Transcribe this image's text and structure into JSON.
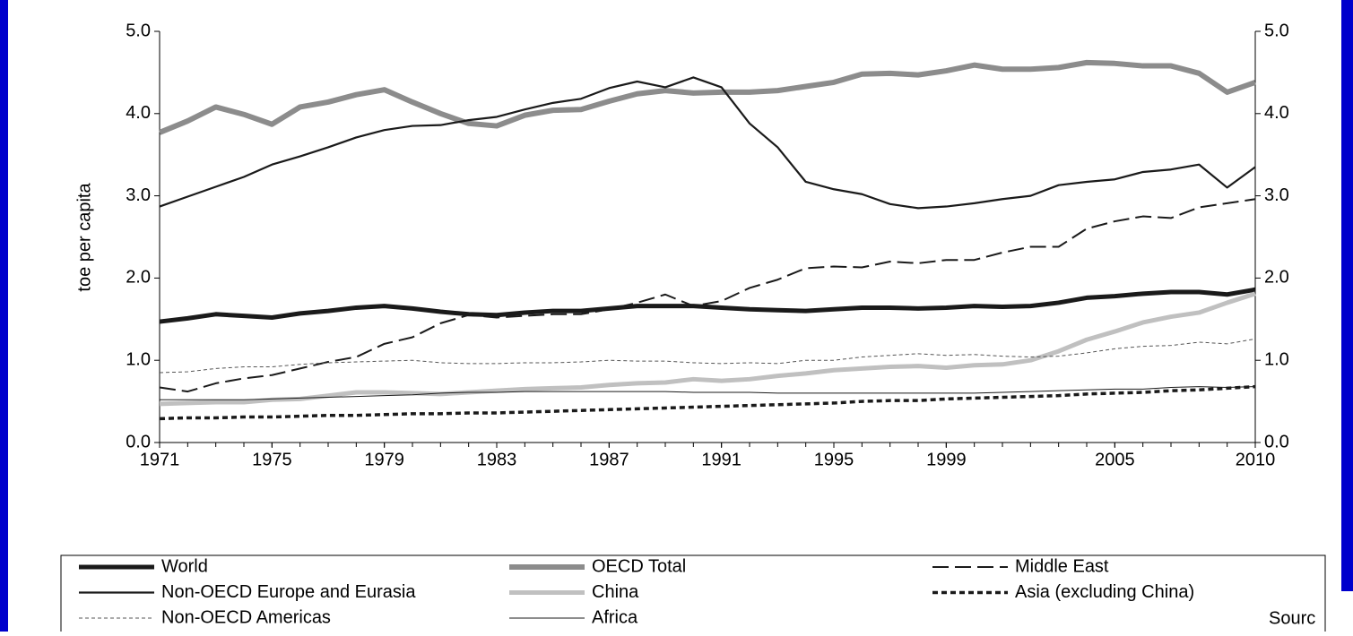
{
  "chart_data": {
    "type": "line",
    "y_label": "toe per capita",
    "source": "Sourc",
    "x": [
      1971,
      1972,
      1973,
      1974,
      1975,
      1976,
      1977,
      1978,
      1979,
      1980,
      1981,
      1982,
      1983,
      1984,
      1985,
      1986,
      1987,
      1988,
      1989,
      1990,
      1991,
      1992,
      1993,
      1994,
      1995,
      1996,
      1997,
      1998,
      1999,
      2000,
      2001,
      2002,
      2003,
      2004,
      2005,
      2006,
      2007,
      2008,
      2009,
      2010
    ],
    "xlim": [
      1971,
      2010
    ],
    "xticks": [
      1971,
      1975,
      1979,
      1983,
      1987,
      1991,
      1995,
      1999,
      2005,
      2010
    ],
    "ylim": [
      0,
      5
    ],
    "yticks": [
      {
        "value": 0,
        "label": "0.0"
      },
      {
        "value": 1,
        "label": "1.0"
      },
      {
        "value": 2,
        "label": "2.0"
      },
      {
        "value": 3,
        "label": "3.0"
      },
      {
        "value": 4,
        "label": "4.0"
      },
      {
        "value": 5,
        "label": "5.0"
      }
    ],
    "series": [
      {
        "name": "World",
        "color": "#1a1a1a",
        "values": [
          1.47,
          1.51,
          1.56,
          1.54,
          1.52,
          1.57,
          1.6,
          1.64,
          1.66,
          1.63,
          1.59,
          1.56,
          1.55,
          1.58,
          1.6,
          1.6,
          1.63,
          1.66,
          1.66,
          1.66,
          1.64,
          1.62,
          1.61,
          1.6,
          1.62,
          1.64,
          1.64,
          1.63,
          1.64,
          1.66,
          1.65,
          1.66,
          1.7,
          1.76,
          1.78,
          1.81,
          1.83,
          1.83,
          1.8,
          1.86
        ]
      },
      {
        "name": "OECD Total",
        "color": "#8c8c8c",
        "values": [
          3.77,
          3.91,
          4.08,
          3.99,
          3.87,
          4.08,
          4.14,
          4.23,
          4.29,
          4.14,
          4.0,
          3.88,
          3.85,
          3.98,
          4.04,
          4.05,
          4.15,
          4.24,
          4.28,
          4.25,
          4.26,
          4.26,
          4.28,
          4.33,
          4.38,
          4.48,
          4.49,
          4.47,
          4.52,
          4.59,
          4.54,
          4.54,
          4.56,
          4.62,
          4.61,
          4.58,
          4.58,
          4.49,
          4.26,
          4.38
        ]
      },
      {
        "name": "Middle East",
        "color": "#1a1a1a",
        "values": [
          0.67,
          0.62,
          0.72,
          0.78,
          0.82,
          0.9,
          0.98,
          1.04,
          1.2,
          1.28,
          1.45,
          1.55,
          1.52,
          1.54,
          1.56,
          1.56,
          1.62,
          1.7,
          1.8,
          1.66,
          1.72,
          1.88,
          1.98,
          2.12,
          2.14,
          2.13,
          2.2,
          2.18,
          2.22,
          2.22,
          2.31,
          2.38,
          2.38,
          2.6,
          2.69,
          2.75,
          2.73,
          2.86,
          2.91,
          2.96
        ]
      },
      {
        "name": "Non-OECD Europe and Eurasia",
        "color": "#1a1a1a",
        "values": [
          2.87,
          2.99,
          3.11,
          3.23,
          3.38,
          3.48,
          3.59,
          3.71,
          3.8,
          3.85,
          3.86,
          3.92,
          3.96,
          4.05,
          4.13,
          4.18,
          4.31,
          4.39,
          4.32,
          4.44,
          4.32,
          3.88,
          3.59,
          3.17,
          3.08,
          3.02,
          2.9,
          2.85,
          2.87,
          2.91,
          2.96,
          3.0,
          3.13,
          3.17,
          3.2,
          3.29,
          3.32,
          3.38,
          3.1,
          3.35
        ]
      },
      {
        "name": "China",
        "color": "#c0c0c0",
        "values": [
          0.47,
          0.48,
          0.49,
          0.49,
          0.52,
          0.53,
          0.57,
          0.61,
          0.61,
          0.6,
          0.59,
          0.61,
          0.63,
          0.65,
          0.66,
          0.67,
          0.7,
          0.72,
          0.73,
          0.77,
          0.75,
          0.77,
          0.81,
          0.84,
          0.88,
          0.9,
          0.92,
          0.93,
          0.91,
          0.94,
          0.95,
          1.0,
          1.11,
          1.25,
          1.35,
          1.46,
          1.53,
          1.58,
          1.7,
          1.81
        ]
      },
      {
        "name": "Asia (excluding China)",
        "color": "#1a1a1a",
        "values": [
          0.29,
          0.3,
          0.3,
          0.31,
          0.31,
          0.32,
          0.33,
          0.33,
          0.34,
          0.35,
          0.35,
          0.36,
          0.36,
          0.37,
          0.38,
          0.39,
          0.4,
          0.41,
          0.42,
          0.43,
          0.44,
          0.45,
          0.46,
          0.47,
          0.48,
          0.5,
          0.51,
          0.51,
          0.53,
          0.54,
          0.55,
          0.56,
          0.57,
          0.59,
          0.6,
          0.61,
          0.63,
          0.64,
          0.66,
          0.68
        ]
      },
      {
        "name": "Non-OECD Americas",
        "color": "#555555",
        "values": [
          0.85,
          0.86,
          0.9,
          0.92,
          0.92,
          0.95,
          0.97,
          0.98,
          0.99,
          1.0,
          0.97,
          0.96,
          0.96,
          0.97,
          0.97,
          0.98,
          1.0,
          0.99,
          0.99,
          0.97,
          0.96,
          0.97,
          0.96,
          1.0,
          1.0,
          1.04,
          1.06,
          1.08,
          1.06,
          1.07,
          1.05,
          1.04,
          1.05,
          1.09,
          1.14,
          1.17,
          1.18,
          1.22,
          1.2,
          1.26
        ]
      },
      {
        "name": "Africa",
        "color": "#1a1a1a",
        "values": [
          0.52,
          0.52,
          0.52,
          0.52,
          0.53,
          0.54,
          0.55,
          0.56,
          0.57,
          0.58,
          0.6,
          0.61,
          0.61,
          0.62,
          0.62,
          0.62,
          0.62,
          0.62,
          0.62,
          0.61,
          0.61,
          0.61,
          0.6,
          0.6,
          0.6,
          0.6,
          0.6,
          0.6,
          0.6,
          0.6,
          0.61,
          0.62,
          0.63,
          0.64,
          0.65,
          0.65,
          0.67,
          0.68,
          0.67,
          0.68
        ]
      }
    ]
  }
}
